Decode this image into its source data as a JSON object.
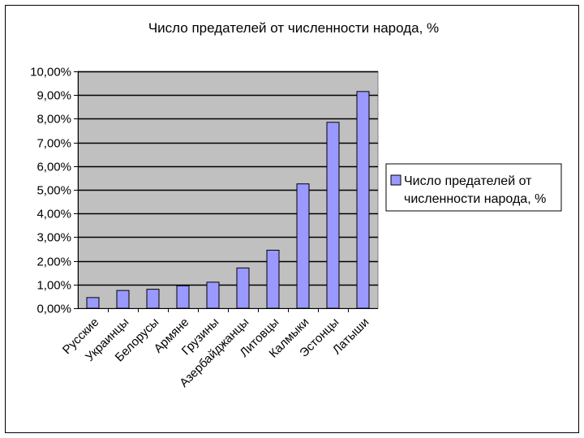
{
  "chart_data": {
    "type": "bar",
    "title": "Число предателей от численности народа, %",
    "categories": [
      "Русские",
      "Украинцы",
      "Белорусы",
      "Армяне",
      "Грузины",
      "Азербайджанцы",
      "Литовцы",
      "Калмыки",
      "Эстонцы",
      "Латыши"
    ],
    "series": [
      {
        "name": "Число предателей от численности народа, %",
        "values": [
          0.45,
          0.75,
          0.8,
          0.95,
          1.1,
          1.7,
          2.45,
          5.25,
          7.85,
          9.15
        ],
        "color": "#9999ff"
      }
    ],
    "xlabel": "",
    "ylabel": "",
    "ylim": [
      0,
      10
    ],
    "y_ticks": [
      0,
      1,
      2,
      3,
      4,
      5,
      6,
      7,
      8,
      9,
      10
    ],
    "y_tick_labels": [
      "0,00%",
      "1,00%",
      "2,00%",
      "3,00%",
      "4,00%",
      "5,00%",
      "6,00%",
      "7,00%",
      "8,00%",
      "9,00%",
      "10,00%"
    ],
    "gridlines": true,
    "plot_background": "#c0c0c0",
    "legend": {
      "position": "right",
      "label_lines": [
        "Число предателей от",
        "численности народа, %"
      ]
    }
  }
}
